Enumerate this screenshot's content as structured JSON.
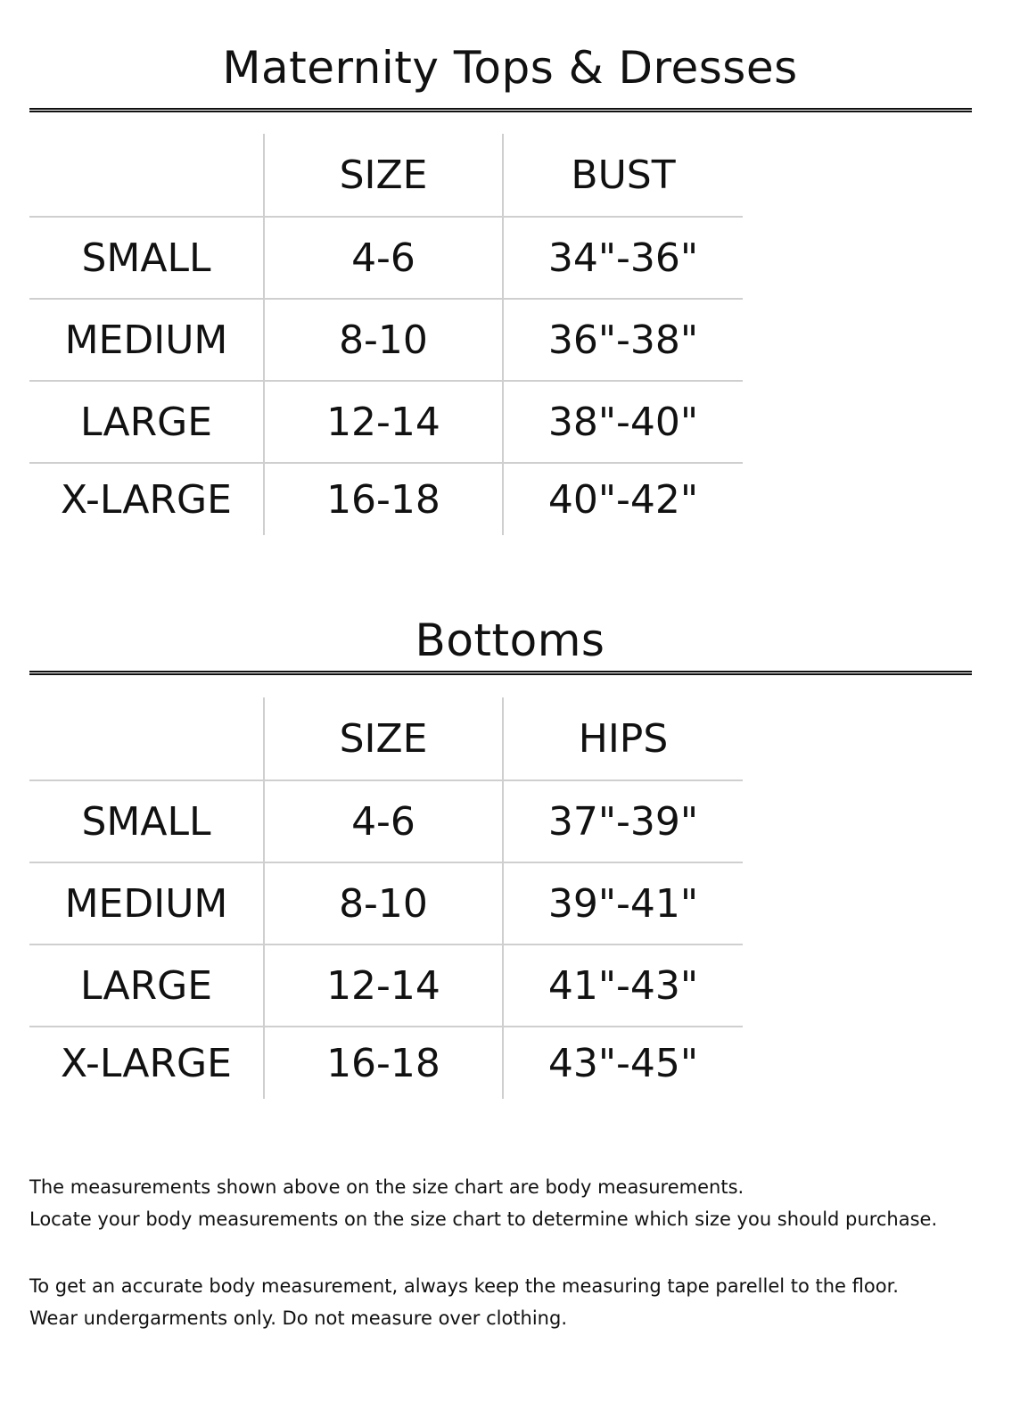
{
  "tops": {
    "title": "Maternity Tops & Dresses",
    "headers": [
      "",
      "SIZE",
      "BUST"
    ],
    "rows": [
      [
        "SMALL",
        "4-6",
        "34\"-36\""
      ],
      [
        "MEDIUM",
        "8-10",
        "36\"-38\""
      ],
      [
        "LARGE",
        "12-14",
        "38\"-40\""
      ],
      [
        "X-LARGE",
        "16-18",
        "40\"-42\""
      ]
    ]
  },
  "bottoms": {
    "title": "Bottoms",
    "headers": [
      "",
      "SIZE",
      "HIPS"
    ],
    "rows": [
      [
        "SMALL",
        "4-6",
        "37\"-39\""
      ],
      [
        "MEDIUM",
        "8-10",
        "39\"-41\""
      ],
      [
        "LARGE",
        "12-14",
        "41\"-43\""
      ],
      [
        "X-LARGE",
        "16-18",
        "43\"-45\""
      ]
    ]
  },
  "notes": {
    "line1": "The measurements shown above on the size chart are body measurements.",
    "line2": "Locate your body measurements on the size chart to determine which size you should purchase.",
    "line3": "To get an accurate body measurement, always keep the measuring tape parellel to the floor.",
    "line4": "Wear undergarments only. Do not measure over clothing."
  }
}
